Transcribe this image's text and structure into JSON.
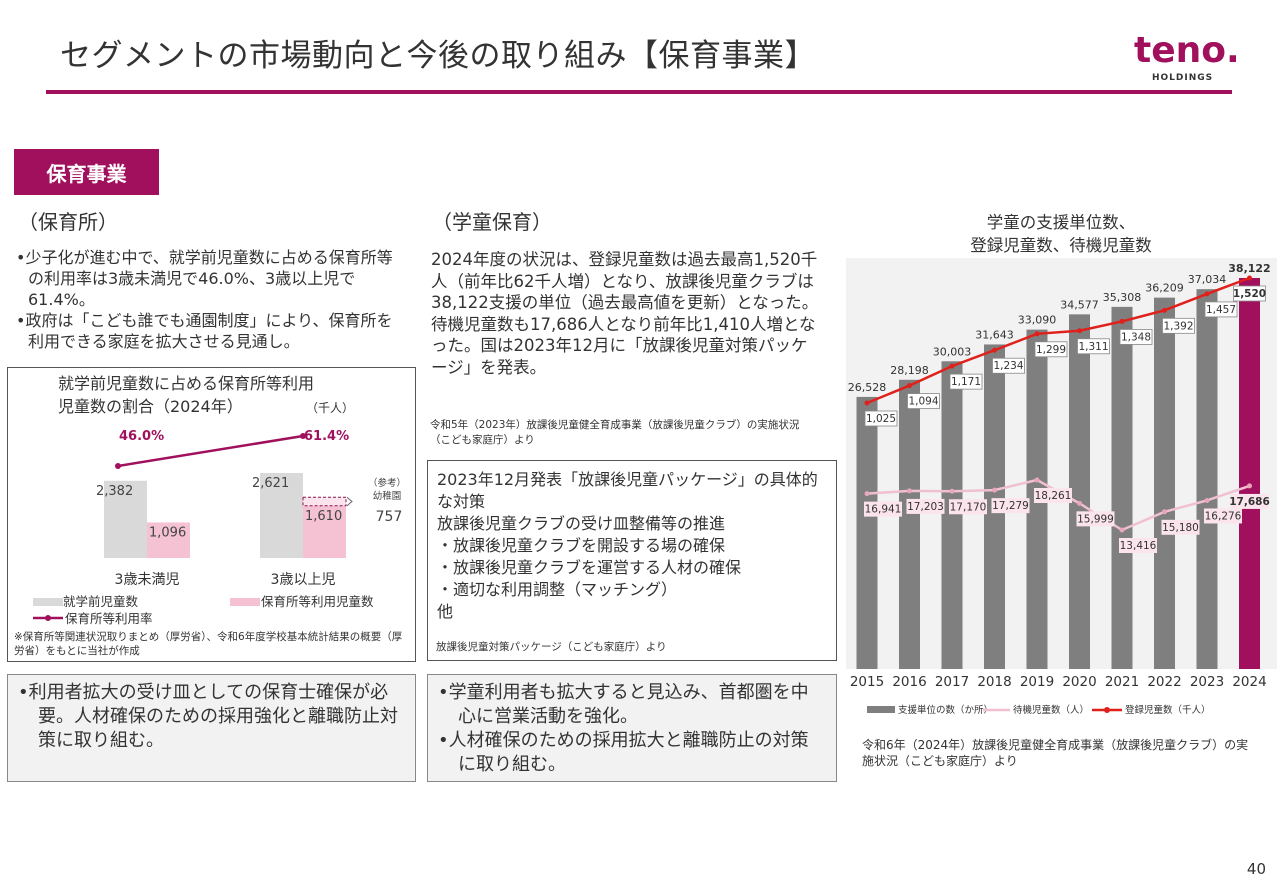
{
  "header": {
    "title": "セグメントの市場動向と今後の取り組み【保育事業】",
    "logo_text": "teno.",
    "logo_sub": "HOLDINGS"
  },
  "tag": "保育事業",
  "left": {
    "heading": "（保育所）",
    "bullets": [
      "•少子化が進む中で、就学前児童数に占める保育所等の利用率は3歳未満児で46.0%、3歳以上児で61.4%。",
      "•政府は「こども誰でも通園制度」により、保育所を利用できる家庭を拡大させる見通し。"
    ],
    "note": "•利用者拡大の受け皿としての保育士確保が必要。人材確保のための採用強化と離職防止対策に取り組む。"
  },
  "middle": {
    "heading": "（学童保育）",
    "paragraph": "2024年度の状況は、登録児童数は過去最高1,520千人（前年比62千人増）となり、放課後児童クラブは38,122支援の単位（過去最高値を更新）となった。待機児童数も17,686人となり前年比1,410人増となった。国は2023年12月に「放課後児童対策パッケージ」を発表。",
    "source": "令和5年（2023年）放課後児童健全育成事業（放課後児童クラブ）の実施状況（こども家庭庁）より",
    "box_title": "2023年12月発表「放課後児童パッケージ」の具体的な対策",
    "box_lines": [
      "放課後児童クラブの受け皿整備等の推進",
      "・放課後児童クラブを開設する場の確保",
      "・放課後児童クラブを運営する人材の確保",
      "・適切な利用調整（マッチング）",
      "他"
    ],
    "box_source": "放課後児童対策パッケージ（こども家庭庁）より",
    "note_bullets": [
      "•学童利用者も拡大すると見込み、首都圏を中心に営業活動を強化。",
      "•人材確保のための採用拡大と離職防止の対策に取り組む。"
    ]
  },
  "right_source": "令和6年（2024年）放課後児童健全育成事業（放課後児童クラブ）の実施状況（こども家庭庁）より",
  "page_number": "40",
  "chart_data": [
    {
      "type": "bar",
      "title": "就学前児童数に占める保育所等利用児童数の割合（2024年）",
      "unit": "（千人）",
      "categories": [
        "3歳未満児",
        "3歳以上児"
      ],
      "series": [
        {
          "name": "就学前児童数",
          "values": [
            2382,
            2621
          ],
          "color": "#d9d9d9"
        },
        {
          "name": "保育所等利用児童数",
          "values": [
            1096,
            1610
          ],
          "color": "#f4c2d3"
        },
        {
          "name": "保育所等利用率",
          "values": [
            46.0,
            61.4
          ],
          "color": "#a0105d",
          "kind": "line"
        }
      ],
      "value_labels": [
        "2,382",
        "2,621",
        "1,096",
        "1,610"
      ],
      "rate_labels": [
        "46.0%",
        "61.4%"
      ],
      "reference": {
        "label": "（参考）幼稚園",
        "value": 757,
        "value_label": "757"
      },
      "source_note": "※保育所等関連状況取りまとめ（厚労省）、令和6年度学校基本統計結果の概要（厚労省）をもとに当社が作成"
    },
    {
      "type": "bar",
      "title": "学童の支援単位数、登録児童数、待機児童数",
      "categories": [
        "2015",
        "2016",
        "2017",
        "2018",
        "2019",
        "2020",
        "2021",
        "2022",
        "2023",
        "2024"
      ],
      "series": [
        {
          "name": "支援単位の数（か所）",
          "values": [
            26528,
            28198,
            30003,
            31643,
            33090,
            34577,
            35308,
            36209,
            37034,
            38122
          ],
          "labels": [
            "26,528",
            "28,198",
            "30,003",
            "31,643",
            "33,090",
            "34,577",
            "35,308",
            "36,209",
            "37,034",
            "38,122"
          ],
          "color": "#7f7f7f",
          "highlight_color": "#a0105d"
        },
        {
          "name": "待機児童数（人）",
          "values": [
            16941,
            17203,
            17170,
            17279,
            18261,
            15999,
            13416,
            15180,
            16276,
            17686
          ],
          "labels": [
            "16,941",
            "17,203",
            "17,170",
            "17,279",
            "18,261",
            "15,999",
            "13,416",
            "15,180",
            "16,276",
            "17,686"
          ],
          "color": "#f0c0d2",
          "kind": "line"
        },
        {
          "name": "登録児童数（千人）",
          "values": [
            1025,
            1094,
            1171,
            1234,
            1299,
            1311,
            1348,
            1392,
            1457,
            1520
          ],
          "labels": [
            "1,025",
            "1,094",
            "1,171",
            "1,234",
            "1,299",
            "1,311",
            "1,348",
            "1,392",
            "1,457",
            "1,520"
          ],
          "color": "#e0201b",
          "kind": "line"
        }
      ]
    }
  ]
}
